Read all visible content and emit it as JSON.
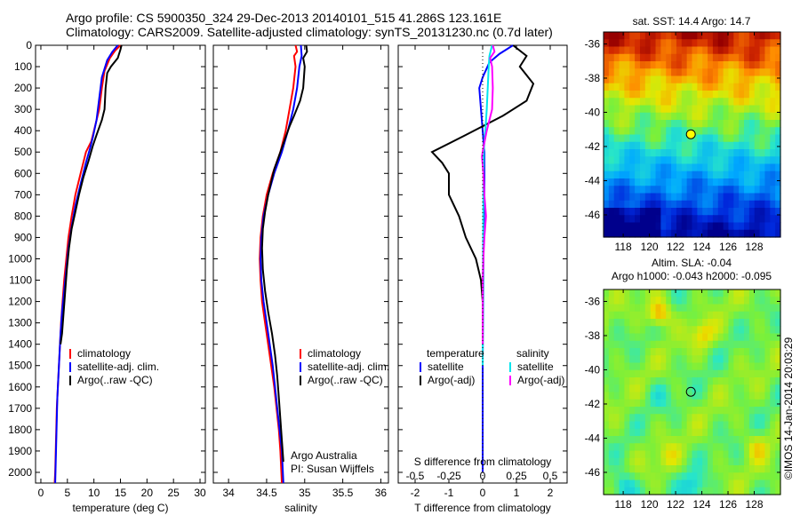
{
  "header": {
    "line1": "Argo profile: CS 5900350_324 29-Dec-2013 20140101_515 41.286S 123.161E",
    "line2": "Climatology: CARS2009. Satellite-adjusted climatology: synTS_20131230.nc (0.7d later)"
  },
  "colors": {
    "climatology": "#ff0000",
    "satellite": "#0000ff",
    "argo": "#000000",
    "sat_salinity": "#00e5ee",
    "argo_salinity_adj": "#ff00ff"
  },
  "chart_data": [
    {
      "type": "line",
      "name": "temperature",
      "xlabel": "temperature (deg C)",
      "ylabel": "",
      "xlim": [
        -1,
        31
      ],
      "ylim": [
        2050,
        0
      ],
      "xticks": [
        0,
        5,
        10,
        15,
        20,
        25,
        30
      ],
      "yticks": [
        0,
        100,
        200,
        300,
        400,
        500,
        600,
        700,
        800,
        900,
        1000,
        1100,
        1200,
        1300,
        1400,
        1500,
        1600,
        1700,
        1800,
        1900,
        2000
      ],
      "legend": [
        "climatology",
        "satellite-adj. clim.",
        "Argo(..raw -QC)"
      ],
      "series": [
        {
          "name": "climatology",
          "color": "#ff0000",
          "points": [
            [
              15,
              0
            ],
            [
              14,
              25
            ],
            [
              13,
              60
            ],
            [
              12,
              120
            ],
            [
              11.5,
              200
            ],
            [
              11,
              300
            ],
            [
              10,
              400
            ],
            [
              9.5,
              450
            ],
            [
              8.5,
              500
            ],
            [
              7.5,
              600
            ],
            [
              6.5,
              700
            ],
            [
              5.8,
              800
            ],
            [
              5.2,
              900
            ],
            [
              4.8,
              1000
            ],
            [
              4.4,
              1100
            ],
            [
              4.1,
              1200
            ],
            [
              3.8,
              1300
            ],
            [
              3.6,
              1400
            ],
            [
              3.4,
              1500
            ],
            [
              3.2,
              1600
            ],
            [
              3.0,
              1700
            ],
            [
              2.9,
              1800
            ],
            [
              2.8,
              1900
            ],
            [
              2.7,
              2000
            ],
            [
              2.6,
              2050
            ]
          ]
        },
        {
          "name": "satellite-adj. clim.",
          "color": "#0000ff",
          "points": [
            [
              14.5,
              0
            ],
            [
              13.5,
              30
            ],
            [
              12.5,
              70
            ],
            [
              11.5,
              150
            ],
            [
              11,
              250
            ],
            [
              10.5,
              350
            ],
            [
              9.8,
              430
            ],
            [
              9.3,
              480
            ],
            [
              8.5,
              550
            ],
            [
              7.5,
              650
            ],
            [
              6.5,
              750
            ],
            [
              5.8,
              850
            ],
            [
              5.2,
              950
            ],
            [
              4.8,
              1050
            ],
            [
              4.4,
              1150
            ],
            [
              4.0,
              1250
            ],
            [
              3.7,
              1350
            ],
            [
              3.5,
              1450
            ],
            [
              3.3,
              1550
            ],
            [
              3.1,
              1650
            ],
            [
              3.0,
              1750
            ],
            [
              2.9,
              1850
            ],
            [
              2.8,
              1950
            ],
            [
              2.7,
              2050
            ]
          ]
        },
        {
          "name": "Argo(..raw -QC)",
          "color": "#000000",
          "points": [
            [
              15.2,
              0
            ],
            [
              15,
              20
            ],
            [
              14.5,
              60
            ],
            [
              13.2,
              100
            ],
            [
              12.5,
              130
            ],
            [
              12.2,
              200
            ],
            [
              12,
              300
            ],
            [
              11.5,
              350
            ],
            [
              10.5,
              420
            ],
            [
              9.8,
              470
            ],
            [
              9,
              540
            ],
            [
              8,
              620
            ],
            [
              7.2,
              700
            ],
            [
              6.5,
              780
            ],
            [
              5.8,
              860
            ],
            [
              5.3,
              950
            ],
            [
              4.9,
              1050
            ],
            [
              4.6,
              1150
            ],
            [
              4.3,
              1250
            ],
            [
              4.0,
              1350
            ],
            [
              3.7,
              1400
            ]
          ]
        }
      ]
    },
    {
      "type": "line",
      "name": "salinity",
      "xlabel": "salinity",
      "ylabel": "",
      "xlim": [
        33.8,
        36.1
      ],
      "ylim": [
        2050,
        0
      ],
      "xticks": [
        34,
        34.5,
        35,
        35.5,
        36
      ],
      "legend": [
        "climatology",
        "satellite-adj. clim.",
        "Argo(..raw -QC)"
      ],
      "annotations": [
        "Argo Australia",
        "PI: Susan Wijffels"
      ],
      "series": [
        {
          "name": "climatology",
          "color": "#ff0000",
          "points": [
            [
              34.88,
              0
            ],
            [
              34.9,
              30
            ],
            [
              34.86,
              50
            ],
            [
              34.88,
              100
            ],
            [
              34.85,
              200
            ],
            [
              34.8,
              300
            ],
            [
              34.75,
              400
            ],
            [
              34.68,
              500
            ],
            [
              34.58,
              600
            ],
            [
              34.5,
              700
            ],
            [
              34.45,
              800
            ],
            [
              34.42,
              900
            ],
            [
              34.41,
              1000
            ],
            [
              34.42,
              1100
            ],
            [
              34.44,
              1200
            ],
            [
              34.48,
              1300
            ],
            [
              34.52,
              1400
            ],
            [
              34.56,
              1500
            ],
            [
              34.6,
              1600
            ],
            [
              34.63,
              1700
            ],
            [
              34.66,
              1800
            ],
            [
              34.68,
              1900
            ],
            [
              34.7,
              2050
            ]
          ]
        },
        {
          "name": "satellite-adj. clim.",
          "color": "#0000ff",
          "points": [
            [
              34.95,
              0
            ],
            [
              34.96,
              50
            ],
            [
              34.93,
              100
            ],
            [
              34.9,
              200
            ],
            [
              34.85,
              300
            ],
            [
              34.78,
              400
            ],
            [
              34.7,
              500
            ],
            [
              34.6,
              600
            ],
            [
              34.52,
              700
            ],
            [
              34.46,
              800
            ],
            [
              34.43,
              900
            ],
            [
              34.42,
              1000
            ],
            [
              34.43,
              1100
            ],
            [
              34.46,
              1200
            ],
            [
              34.5,
              1300
            ],
            [
              34.54,
              1400
            ],
            [
              34.58,
              1500
            ],
            [
              34.61,
              1600
            ],
            [
              34.64,
              1700
            ],
            [
              34.67,
              1800
            ],
            [
              34.7,
              1900
            ],
            [
              34.72,
              2050
            ]
          ]
        },
        {
          "name": "Argo(..raw -QC)",
          "color": "#000000",
          "points": [
            [
              35.02,
              0
            ],
            [
              35.03,
              30
            ],
            [
              34.98,
              60
            ],
            [
              35.0,
              100
            ],
            [
              34.98,
              200
            ],
            [
              34.94,
              260
            ],
            [
              34.86,
              330
            ],
            [
              34.8,
              380
            ],
            [
              34.72,
              460
            ],
            [
              34.66,
              520
            ],
            [
              34.6,
              580
            ],
            [
              34.56,
              640
            ],
            [
              34.52,
              700
            ],
            [
              34.48,
              780
            ],
            [
              34.45,
              860
            ],
            [
              34.44,
              950
            ],
            [
              34.45,
              1050
            ],
            [
              34.48,
              1150
            ],
            [
              34.52,
              1250
            ],
            [
              34.57,
              1350
            ],
            [
              34.61,
              1450
            ],
            [
              34.64,
              1550
            ],
            [
              34.66,
              1650
            ],
            [
              34.68,
              1750
            ],
            [
              34.7,
              1850
            ],
            [
              34.72,
              1950
            ]
          ]
        }
      ]
    },
    {
      "type": "line",
      "name": "differences",
      "xlabel": "T difference from climatology",
      "xlabel_top": "S difference from climatology",
      "ylabel": "",
      "xlim": [
        -2.5,
        2.5
      ],
      "ylim": [
        2050,
        0
      ],
      "xticks": [
        -2,
        -1,
        0,
        1,
        2
      ],
      "xticklabels_top": [
        "-0.5",
        "-0.25",
        "0",
        "0.25",
        "0.5"
      ],
      "legend": [
        "temperature",
        "satellite",
        "Argo(-adj)",
        "salinity",
        "satellite",
        "Argo(-adj)"
      ],
      "series": [
        {
          "name": "temperature satellite",
          "color": "#0000ff",
          "points": [
            [
              0.9,
              0
            ],
            [
              0.5,
              40
            ],
            [
              0.2,
              80
            ],
            [
              0,
              150
            ],
            [
              -0.1,
              200
            ],
            [
              -0.05,
              300
            ],
            [
              0,
              400
            ],
            [
              0.05,
              500
            ],
            [
              0.05,
              700
            ],
            [
              0.02,
              1000
            ],
            [
              0,
              1500
            ],
            [
              0,
              2000
            ]
          ]
        },
        {
          "name": "temperature Argo(-adj)",
          "color": "#000000",
          "points": [
            [
              0.9,
              0
            ],
            [
              1.3,
              50
            ],
            [
              1.1,
              100
            ],
            [
              1.5,
              180
            ],
            [
              1.3,
              260
            ],
            [
              0.6,
              330
            ],
            [
              -0.5,
              420
            ],
            [
              -1.5,
              500
            ],
            [
              -1.2,
              550
            ],
            [
              -1.0,
              600
            ],
            [
              -1.0,
              700
            ],
            [
              -0.7,
              800
            ],
            [
              -0.5,
              900
            ],
            [
              -0.2,
              1000
            ],
            [
              -0.05,
              1100
            ],
            [
              0,
              1200
            ],
            [
              0,
              1400
            ]
          ]
        },
        {
          "name": "salinity satellite",
          "color": "#00e5ee",
          "points": [
            [
              0.28,
              0
            ],
            [
              0.2,
              50
            ],
            [
              0.18,
              100
            ],
            [
              0.15,
              200
            ],
            [
              0.12,
              300
            ],
            [
              0.08,
              400
            ],
            [
              0.03,
              500
            ],
            [
              0.02,
              700
            ],
            [
              0.01,
              1000
            ],
            [
              0,
              1500
            ]
          ]
        },
        {
          "name": "salinity Argo(-adj)",
          "color": "#ff00ff",
          "points": [
            [
              0.3,
              0
            ],
            [
              0.35,
              30
            ],
            [
              0.22,
              60
            ],
            [
              0.28,
              100
            ],
            [
              0.3,
              200
            ],
            [
              0.28,
              300
            ],
            [
              0.12,
              400
            ],
            [
              0.02,
              480
            ],
            [
              -0.02,
              520
            ],
            [
              0.02,
              600
            ],
            [
              0.05,
              700
            ],
            [
              0.1,
              800
            ],
            [
              0.05,
              900
            ],
            [
              0.02,
              1000
            ],
            [
              0,
              1100
            ],
            [
              0,
              1400
            ]
          ]
        }
      ]
    },
    {
      "type": "heatmap",
      "name": "sst-map",
      "title": "sat. SST: 14.4  Argo: 14.7",
      "xlim": [
        116.5,
        130
      ],
      "ylim": [
        -47.3,
        -35.3
      ],
      "xticks": [
        118,
        120,
        122,
        124,
        126,
        128
      ],
      "yticks": [
        -36,
        -38,
        -40,
        -42,
        -44,
        -46
      ],
      "argo_marker": [
        123.161,
        -41.286
      ]
    },
    {
      "type": "heatmap",
      "name": "sla-map",
      "title_line1": "Altim. SLA: -0.04",
      "title_line2": "Argo h1000: -0.043  h2000: -0.095",
      "xlim": [
        116.5,
        130
      ],
      "ylim": [
        -47.3,
        -35.3
      ],
      "xticks": [
        118,
        120,
        122,
        124,
        126,
        128
      ],
      "yticks": [
        -36,
        -38,
        -40,
        -42,
        -44,
        -46
      ],
      "argo_marker": [
        123.161,
        -41.286
      ]
    }
  ],
  "footer_stamp": "©IMOS 14-Jan-2014 20:03:29"
}
